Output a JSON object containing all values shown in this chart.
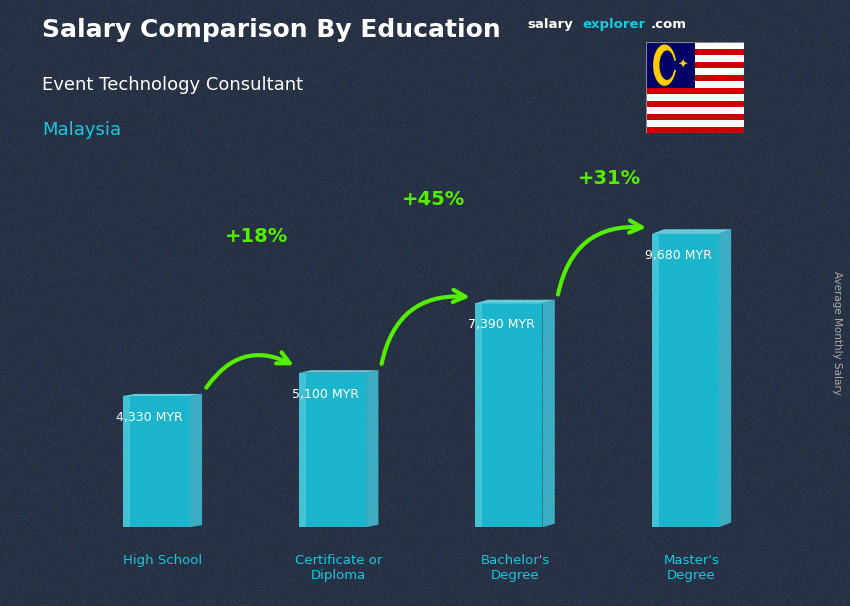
{
  "title_bold": "Salary Comparison By Education",
  "subtitle": "Event Technology Consultant",
  "country": "Malaysia",
  "categories": [
    "High School",
    "Certificate or\nDiploma",
    "Bachelor's\nDegree",
    "Master's\nDegree"
  ],
  "values": [
    4330,
    5100,
    7390,
    9680
  ],
  "value_labels": [
    "4,330 MYR",
    "5,100 MYR",
    "7,390 MYR",
    "9,680 MYR"
  ],
  "pct_labels": [
    "+18%",
    "+45%",
    "+31%"
  ],
  "bar_main_color": "#1ac8e0",
  "bar_right_color": "#45d8ee",
  "bar_left_color": "#0e8faa",
  "bar_top_color": "#70e8f8",
  "title_color": "#ffffff",
  "subtitle_color": "#ffffff",
  "country_color": "#1ac8e0",
  "value_color": "#ffffff",
  "pct_color": "#55ee00",
  "arrow_color": "#55ee00",
  "bg_color": "#3a4a5a",
  "ylim": [
    0,
    12000
  ],
  "bar_width": 0.38,
  "x_positions": [
    0,
    1,
    2,
    3
  ],
  "salary_text": "salary",
  "explorer_text": "explorer",
  "com_text": ".com",
  "salary_color": "#ffffff",
  "explorer_color": "#1ac8e0",
  "com_color": "#ffffff",
  "ylabel": "Average Monthly Salary"
}
